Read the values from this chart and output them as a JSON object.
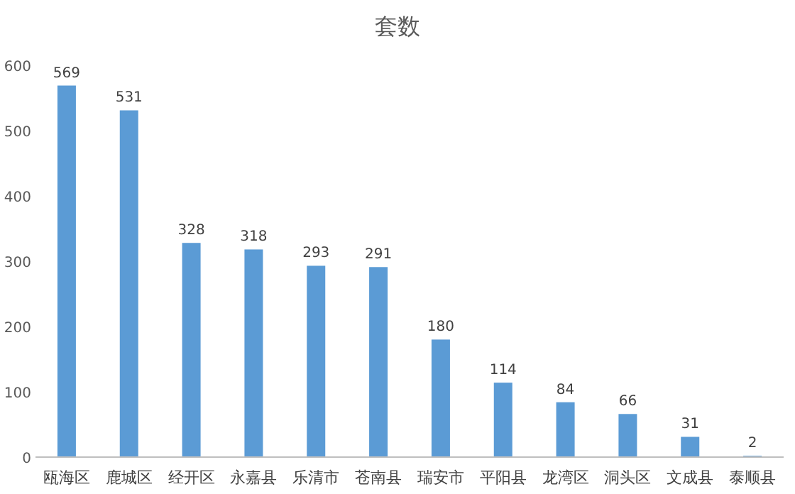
{
  "chart_data": {
    "type": "bar",
    "title": "套数",
    "categories": [
      "瓯海区",
      "鹿城区",
      "经开区",
      "永嘉县",
      "乐清市",
      "苍南县",
      "瑞安市",
      "平阳县",
      "龙湾区",
      "洞头区",
      "文成县",
      "泰顺县"
    ],
    "values": [
      569,
      531,
      328,
      318,
      293,
      291,
      180,
      114,
      84,
      66,
      31,
      2
    ],
    "color": "#5b9bd5",
    "ylim": [
      0,
      600
    ],
    "yticks": [
      0,
      100,
      200,
      300,
      400,
      500,
      600
    ],
    "data_labels": true
  }
}
